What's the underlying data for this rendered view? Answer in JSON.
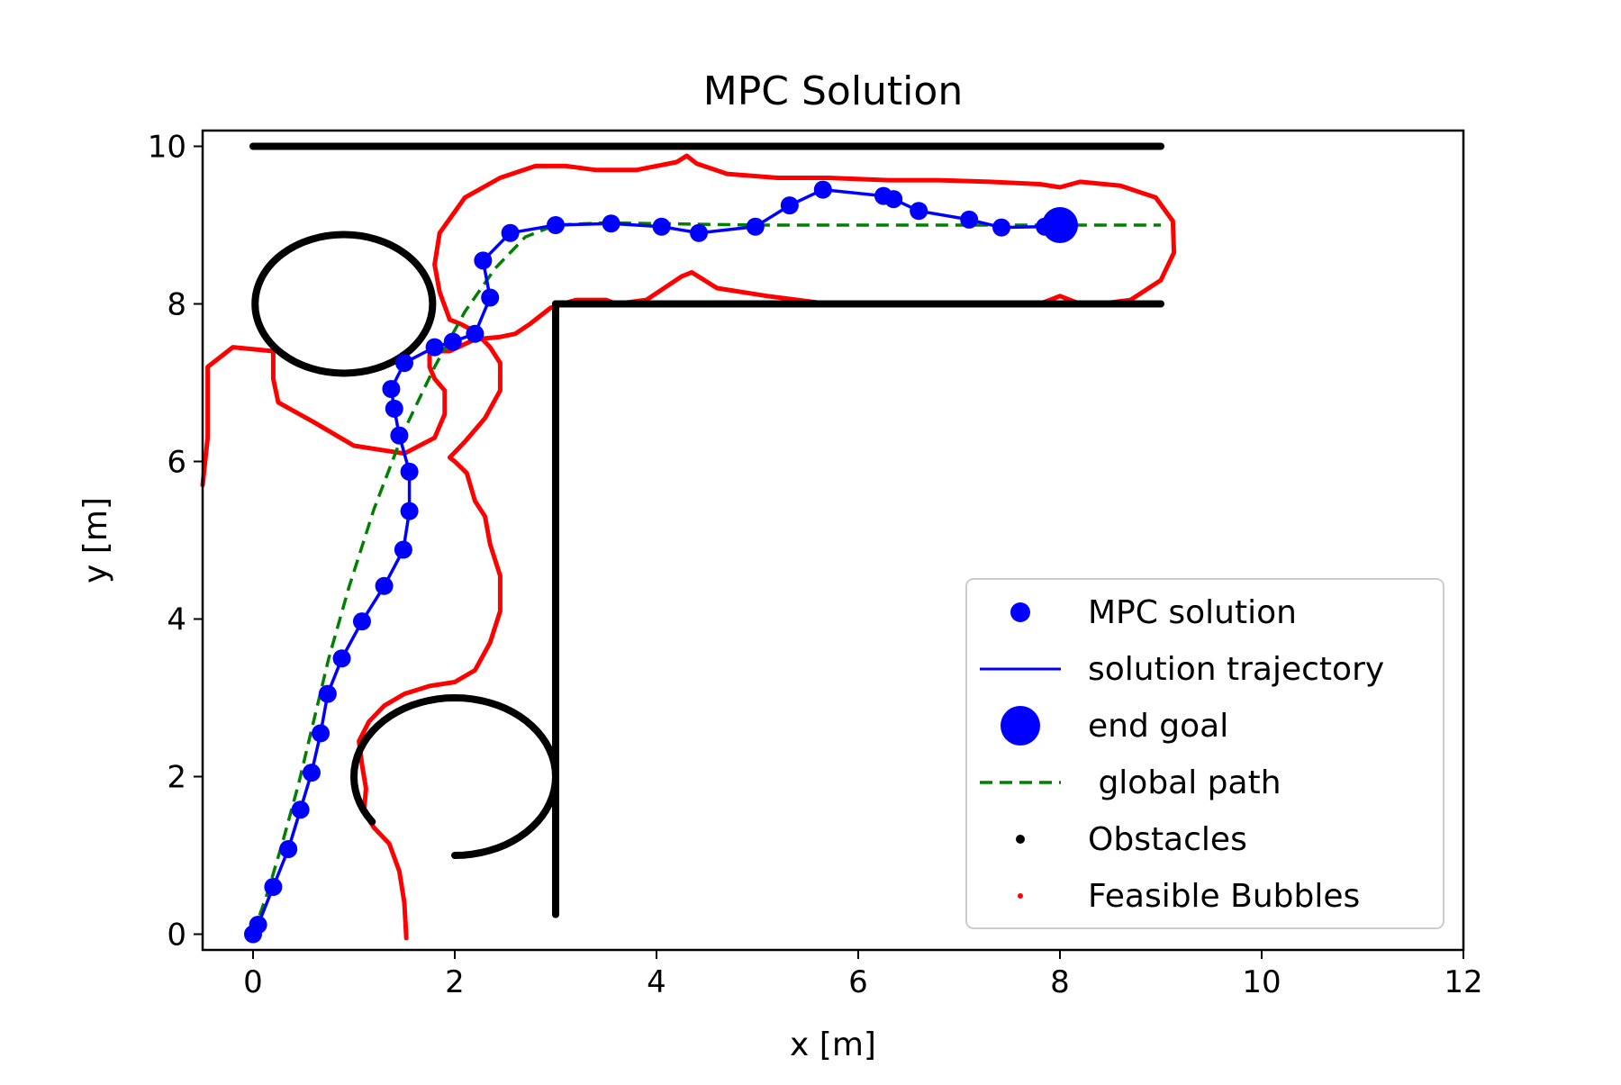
{
  "chart_data": {
    "type": "scatter",
    "title": "MPC Solution",
    "xlabel": "x [m]",
    "ylabel": "y [m]",
    "xlim": [
      -0.5,
      12
    ],
    "ylim": [
      -0.2,
      10.2
    ],
    "xticks": [
      0,
      2,
      4,
      6,
      8,
      10,
      12
    ],
    "yticks": [
      0,
      2,
      4,
      6,
      8,
      10
    ],
    "grid": false,
    "legend_position": "lower-right",
    "colors": {
      "mpc": "#0000ff",
      "trajectory": "#0000ff",
      "goal": "#0000ff",
      "global_path": "#008000",
      "obstacles": "#000000",
      "bubbles": "#ff0000"
    },
    "legend": [
      {
        "key": "mpc",
        "label": "MPC solution"
      },
      {
        "key": "trajectory",
        "label": "solution trajectory"
      },
      {
        "key": "goal",
        "label": "end goal"
      },
      {
        "key": "global_path",
        "label": " global path"
      },
      {
        "key": "obstacles",
        "label": "Obstacles"
      },
      {
        "key": "bubbles",
        "label": "Feasible Bubbles"
      }
    ],
    "mpc_solution": {
      "x": [
        0.0,
        0.05,
        0.2,
        0.35,
        0.47,
        0.58,
        0.67,
        0.74,
        0.88,
        1.08,
        1.3,
        1.49,
        1.55,
        1.55,
        1.45,
        1.4,
        1.37,
        1.5,
        1.8,
        1.98,
        2.2,
        2.35,
        2.28,
        2.55,
        3.0,
        3.55,
        4.05,
        4.42,
        4.98,
        5.32,
        5.65,
        6.25,
        6.35,
        6.6,
        7.1,
        7.42,
        7.85
      ],
      "y": [
        0.0,
        0.12,
        0.6,
        1.08,
        1.58,
        2.05,
        2.55,
        3.05,
        3.5,
        3.97,
        4.42,
        4.88,
        5.37,
        5.87,
        6.33,
        6.67,
        6.92,
        7.25,
        7.45,
        7.52,
        7.62,
        8.08,
        8.55,
        8.9,
        9.0,
        9.02,
        8.98,
        8.9,
        8.98,
        9.25,
        9.45,
        9.37,
        9.33,
        9.18,
        9.07,
        8.97,
        8.98
      ]
    },
    "solution_trajectory": {
      "x": [
        0.0,
        0.05,
        0.2,
        0.35,
        0.47,
        0.58,
        0.67,
        0.74,
        0.88,
        1.08,
        1.3,
        1.49,
        1.55,
        1.55,
        1.45,
        1.4,
        1.37,
        1.5,
        1.8,
        1.98,
        2.2,
        2.35,
        2.28,
        2.55,
        3.0,
        3.55,
        4.05,
        4.42,
        4.98,
        5.32,
        5.65,
        6.25,
        6.35,
        6.6,
        7.1,
        7.42,
        7.85,
        8.0
      ],
      "y": [
        0.0,
        0.12,
        0.6,
        1.08,
        1.58,
        2.05,
        2.55,
        3.05,
        3.5,
        3.97,
        4.42,
        4.88,
        5.37,
        5.87,
        6.33,
        6.67,
        6.92,
        7.25,
        7.45,
        7.52,
        7.62,
        8.08,
        8.55,
        8.9,
        9.0,
        9.02,
        8.98,
        8.9,
        8.98,
        9.25,
        9.45,
        9.37,
        9.33,
        9.18,
        9.07,
        8.97,
        8.98,
        9.0
      ]
    },
    "end_goal": {
      "x": 8.0,
      "y": 9.0
    },
    "global_path": {
      "x": [
        0.0,
        0.15,
        0.3,
        0.45,
        0.6,
        0.75,
        0.95,
        1.2,
        1.5,
        1.8,
        2.1,
        2.4,
        2.7,
        3.0,
        3.5,
        4.0,
        5.0,
        6.0,
        7.0,
        8.0,
        9.0
      ],
      "y": [
        0.0,
        0.55,
        1.2,
        1.9,
        2.7,
        3.5,
        4.4,
        5.4,
        6.4,
        7.2,
        7.9,
        8.45,
        8.85,
        9.0,
        9.03,
        9.02,
        9.0,
        9.0,
        9.0,
        9.0,
        9.0
      ]
    },
    "obstacles": {
      "segments": [
        {
          "x1": 0.0,
          "y1": 10.0,
          "x2": 9.0,
          "y2": 10.0
        },
        {
          "x1": 3.0,
          "y1": 8.0,
          "x2": 9.0,
          "y2": 8.0
        },
        {
          "x1": 3.0,
          "y1": 0.25,
          "x2": 3.0,
          "y2": 8.0
        }
      ],
      "circles": [
        {
          "cx": 0.9,
          "cy": 8.0,
          "r": 0.88
        }
      ],
      "arcs": [
        {
          "cx": 2.0,
          "cy": 2.0,
          "r": 1.0,
          "start_deg": -90,
          "end_deg": 215
        }
      ]
    },
    "feasible_bubbles": {
      "x": [
        1.52,
        1.5,
        1.45,
        1.35,
        1.2,
        1.1,
        1.12,
        1.08,
        1.05,
        1.15,
        1.3,
        1.5,
        1.75,
        2.0,
        2.2,
        2.35,
        2.45,
        2.45,
        2.35,
        2.3,
        2.2,
        2.12,
        2.0,
        1.95,
        2.1,
        2.3,
        2.45,
        2.45,
        2.35,
        2.2,
        2.05,
        1.95,
        1.85,
        1.8,
        1.85,
        2.1,
        2.45,
        2.8,
        3.1,
        3.4,
        3.8,
        4.2,
        4.3,
        4.4,
        4.7,
        5.2,
        5.7,
        6.3,
        6.8,
        7.3,
        7.8,
        8.0,
        8.2,
        8.6,
        8.95,
        9.12,
        9.13,
        9.0,
        8.7,
        8.4,
        8.2,
        8.0,
        7.8,
        7.6,
        7.2,
        6.7,
        6.2,
        5.7,
        5.1,
        4.6,
        4.35,
        4.25,
        3.9,
        3.6,
        3.5,
        3.2,
        2.95,
        2.75,
        2.6,
        2.45,
        2.2,
        1.95,
        1.75,
        1.75,
        1.8,
        1.9,
        1.9,
        1.9,
        1.8,
        1.5,
        1.0,
        0.6,
        0.25,
        0.2,
        0.2,
        -0.2,
        -0.45,
        -0.45,
        -0.5
      ],
      "y": [
        -0.05,
        0.4,
        0.8,
        1.15,
        1.35,
        1.55,
        1.85,
        2.15,
        2.45,
        2.7,
        2.9,
        3.05,
        3.15,
        3.2,
        3.35,
        3.7,
        4.1,
        4.55,
        4.95,
        5.3,
        5.5,
        5.85,
        6.0,
        6.05,
        6.25,
        6.55,
        6.9,
        7.25,
        7.45,
        7.65,
        7.75,
        7.8,
        8.15,
        8.5,
        8.9,
        9.35,
        9.6,
        9.75,
        9.75,
        9.7,
        9.7,
        9.8,
        9.88,
        9.78,
        9.65,
        9.6,
        9.6,
        9.57,
        9.57,
        9.55,
        9.52,
        9.48,
        9.55,
        9.5,
        9.35,
        9.05,
        8.65,
        8.3,
        8.05,
        8.0,
        8.0,
        8.1,
        8.0,
        8.0,
        8.0,
        8.0,
        8.0,
        8.0,
        8.1,
        8.2,
        8.4,
        8.35,
        8.05,
        8.0,
        8.05,
        8.05,
        7.95,
        7.75,
        7.62,
        7.58,
        7.55,
        7.4,
        7.4,
        7.2,
        7.05,
        6.9,
        6.85,
        6.6,
        6.3,
        6.1,
        6.2,
        6.5,
        6.75,
        7.05,
        7.4,
        7.45,
        7.2,
        6.3,
        5.7
      ]
    }
  }
}
